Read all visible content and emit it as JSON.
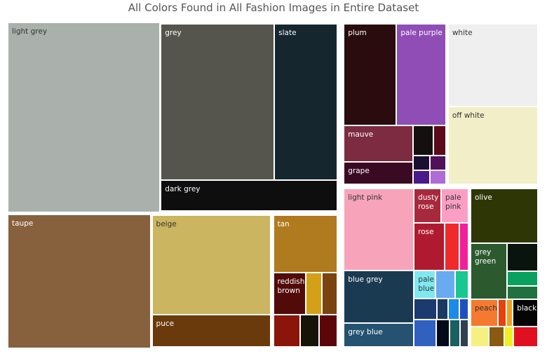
{
  "chart_data": {
    "type": "treemap",
    "title": "All Colors Found in All Fashion Images in Entire Dataset",
    "children": [
      {
        "children": [
          {
            "children": [
              {
                "name": "light grey",
                "color": "#aab1ad",
                "value": 590
              },
              {
                "children": [
                  {
                    "children": [
                      {
                        "name": "grey",
                        "color": "#55554d",
                        "value": 372
                      },
                      {
                        "name": "slate",
                        "color": "#15262f",
                        "value": 207
                      }
                    ]
                  },
                  {
                    "name": "dark grey",
                    "color": "#0e0e0e",
                    "value": 115
                  }
                ]
              }
            ]
          },
          {
            "children": [
              {
                "name": "taupe",
                "color": "#87603d",
                "value": 394
              },
              {
                "children": [
                  {
                    "name": "beige",
                    "color": "#cbb560",
                    "value": 251
                  },
                  {
                    "name": "puce",
                    "color": "#6b3a0c",
                    "value": 83
                  }
                ]
              },
              {
                "children": [
                  {
                    "name": "tan",
                    "color": "#b07b1e",
                    "value": 79
                  },
                  {
                    "children": [
                      {
                        "name": "reddish brown",
                        "color": "#520b09",
                        "value": 30
                      },
                      {
                        "name": null,
                        "color": "#d3a017",
                        "value": 15
                      },
                      {
                        "name": null,
                        "color": "#7a4310",
                        "value": 14
                      }
                    ]
                  },
                  {
                    "children": [
                      {
                        "name": null,
                        "color": "#8c1509",
                        "value": 19
                      },
                      {
                        "name": null,
                        "color": "#161406",
                        "value": 13
                      },
                      {
                        "name": null,
                        "color": "#5c0508",
                        "value": 13
                      }
                    ]
                  }
                ]
              }
            ]
          }
        ]
      },
      {
        "children": [
          {
            "children": [
              {
                "children": [
                  {
                    "children": [
                      {
                        "name": "plum",
                        "color": "#2a0c0e",
                        "value": 115
                      },
                      {
                        "name": "pale purple",
                        "color": "#8f4db5",
                        "value": 108
                      }
                    ]
                  },
                  {
                    "children": [
                      {
                        "children": [
                          {
                            "name": "mauve",
                            "color": "#7c2b40",
                            "value": 54
                          },
                          {
                            "name": "grape",
                            "color": "#3a0a22",
                            "value": 33
                          }
                        ]
                      },
                      {
                        "children": [
                          {
                            "children": [
                              {
                                "name": null,
                                "color": "#14100f",
                                "value": 13
                              },
                              {
                                "name": null,
                                "color": "#5b0a1a",
                                "value": 8
                              }
                            ]
                          },
                          {
                            "children": [
                              {
                                "name": null,
                                "color": "#1a0f2e",
                                "value": 5
                              },
                              {
                                "name": null,
                                "color": "#50105a",
                                "value": 5
                              }
                            ]
                          },
                          {
                            "children": [
                              {
                                "name": null,
                                "color": "#4a1a8a",
                                "value": 5
                              },
                              {
                                "name": null,
                                "color": "#b06ad8",
                                "value": 5
                              }
                            ]
                          }
                        ]
                      }
                    ]
                  }
                ]
              },
              {
                "children": [
                  {
                    "name": "white",
                    "color": "#efefef",
                    "value": 161
                  },
                  {
                    "name": "off white",
                    "color": "#f2eec8",
                    "value": 150
                  }
                ]
              }
            ]
          },
          {
            "children": [
              {
                "children": [
                  {
                    "children": [
                      {
                        "name": "light pink",
                        "color": "#f7a3b9",
                        "value": 122
                      },
                      {
                        "children": [
                          {
                            "children": [
                              {
                                "name": "dusty rose",
                                "color": "#a72a3c",
                                "value": 20
                              },
                              {
                                "name": "pale pink",
                                "color": "#fb9ec4",
                                "value": 20
                              }
                            ]
                          },
                          {
                            "children": [
                              {
                                "name": "rose",
                                "color": "#b01a30",
                                "value": 31
                              },
                              {
                                "name": null,
                                "color": "#f02a2a",
                                "value": 15
                              },
                              {
                                "name": null,
                                "color": "#f0209a",
                                "value": 9
                              }
                            ]
                          }
                        ]
                      }
                    ]
                  },
                  {
                    "children": [
                      {
                        "children": [
                          {
                            "name": "blue grey",
                            "color": "#1a3a52",
                            "value": 79
                          },
                          {
                            "name": "grey blue",
                            "color": "#245270",
                            "value": 36
                          }
                        ]
                      },
                      {
                        "children": [
                          {
                            "children": [
                              {
                                "name": "pale blue",
                                "color": "#7fe8f0",
                                "value": 13
                              },
                              {
                                "name": null,
                                "color": "#6aaaf0",
                                "value": 12
                              },
                              {
                                "name": null,
                                "color": "#18c890",
                                "value": 8
                              }
                            ]
                          },
                          {
                            "children": [
                              {
                                "name": null,
                                "color": "#1a3a70",
                                "value": 10
                              },
                              {
                                "name": null,
                                "color": "#1a3a60",
                                "value": 5
                              },
                              {
                                "name": null,
                                "color": "#1b8ae8",
                                "value": 5
                              },
                              {
                                "name": null,
                                "color": "#2050c0",
                                "value": 4
                              }
                            ]
                          },
                          {
                            "children": [
                              {
                                "name": null,
                                "color": "#3060c0",
                                "value": 13
                              },
                              {
                                "name": null,
                                "color": "#050a1a",
                                "value": 8
                              },
                              {
                                "name": null,
                                "color": "#1a6060",
                                "value": 6
                              },
                              {
                                "name": null,
                                "color": "#304050",
                                "value": 5
                              }
                            ]
                          }
                        ]
                      }
                    ]
                  }
                ]
              },
              {
                "children": [
                  {
                    "name": "olive",
                    "color": "#2f3605",
                    "value": 80
                  },
                  {
                    "children": [
                      {
                        "name": "grey green",
                        "color": "#2c5a2e",
                        "value": 44
                      },
                      {
                        "children": [
                          {
                            "name": null,
                            "color": "#0a140e",
                            "value": 19
                          },
                          {
                            "name": null,
                            "color": "#0aa060",
                            "value": 10
                          },
                          {
                            "name": null,
                            "color": "#207040",
                            "value": 9
                          }
                        ]
                      }
                    ]
                  },
                  {
                    "children": [
                      {
                        "name": "peach",
                        "color": "#f57a30",
                        "value": 16
                      },
                      {
                        "name": null,
                        "color": "#e84010",
                        "value": 5
                      },
                      {
                        "name": null,
                        "color": "#f0a020",
                        "value": 4
                      },
                      {
                        "name": "black",
                        "color": "#050505",
                        "value": 15
                      }
                    ]
                  },
                  {
                    "children": [
                      {
                        "name": null,
                        "color": "#f5f080",
                        "value": 8
                      },
                      {
                        "name": null,
                        "color": "#8a5a10",
                        "value": 7
                      },
                      {
                        "name": null,
                        "color": "#f0f020",
                        "value": 4
                      },
                      {
                        "name": null,
                        "color": "#e01020",
                        "value": 11
                      }
                    ]
                  }
                ]
              }
            ]
          }
        ]
      }
    ]
  }
}
